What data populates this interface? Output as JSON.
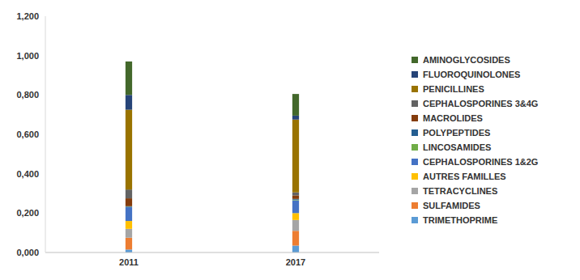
{
  "chart_data": {
    "type": "bar",
    "stacked": true,
    "grid": false,
    "legend": "right",
    "categories": [
      "2011",
      "2017"
    ],
    "ylim": [
      0,
      1.2
    ],
    "yticks": [
      {
        "value": 0,
        "label": "0,000"
      },
      {
        "value": 0.2,
        "label": "0,200"
      },
      {
        "value": 0.4,
        "label": "0,400"
      },
      {
        "value": 0.6,
        "label": "0,600"
      },
      {
        "value": 0.8,
        "label": "0,800"
      },
      {
        "value": 1.0,
        "label": "1,000"
      },
      {
        "value": 1.2,
        "label": "1,200"
      }
    ],
    "series": [
      {
        "name": "TRIMETHOPRIME",
        "color": "#5b9bd5",
        "values": [
          0.015,
          0.035
        ]
      },
      {
        "name": "SULFAMIDES",
        "color": "#ed7d31",
        "values": [
          0.06,
          0.075
        ]
      },
      {
        "name": "TETRACYCLINES",
        "color": "#a5a5a5",
        "values": [
          0.045,
          0.055
        ]
      },
      {
        "name": "AUTRES FAMILLES",
        "color": "#ffc000",
        "values": [
          0.04,
          0.035
        ]
      },
      {
        "name": "CEPHALOSPORINES 1&2G",
        "color": "#4472c4",
        "values": [
          0.07,
          0.065
        ]
      },
      {
        "name": "LINCOSAMIDES",
        "color": "#70ad47",
        "values": [
          0.002,
          0.003
        ]
      },
      {
        "name": "POLYPEPTIDES",
        "color": "#255e91",
        "values": [
          0.003,
          0.004
        ]
      },
      {
        "name": "MACROLIDES",
        "color": "#843c0c",
        "values": [
          0.04,
          0.018
        ]
      },
      {
        "name": "CEPHALOSPORINES 3&4G",
        "color": "#636363",
        "values": [
          0.045,
          0.015
        ]
      },
      {
        "name": "PENICILLINES",
        "color": "#997300",
        "values": [
          0.405,
          0.37
        ]
      },
      {
        "name": "FLUOROQUINOLONES",
        "color": "#264478",
        "values": [
          0.075,
          0.02
        ]
      },
      {
        "name": "AMINOGLYCOSIDES",
        "color": "#43682b",
        "values": [
          0.17,
          0.11
        ]
      }
    ]
  }
}
